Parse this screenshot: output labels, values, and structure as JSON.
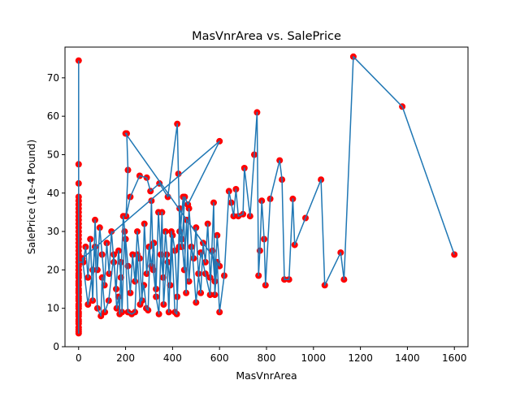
{
  "chart_data": {
    "type": "scatter",
    "title": "MasVnrArea vs. SalePrice",
    "xlabel": "MasVnrArea",
    "ylabel": "SalePrice (1e-4 Pound)",
    "xlim": [
      -58,
      1658
    ],
    "ylim": [
      0,
      78
    ],
    "xticks": [
      0,
      200,
      400,
      600,
      800,
      1000,
      1200,
      1400,
      1600
    ],
    "yticks": [
      0,
      10,
      20,
      30,
      40,
      50,
      60,
      70
    ],
    "xtick_labels": [
      "0",
      "200",
      "400",
      "600",
      "800",
      "1000",
      "1200",
      "1400",
      "1600"
    ],
    "ytick_labels": [
      "0",
      "10",
      "20",
      "30",
      "40",
      "50",
      "60",
      "70"
    ],
    "grid": false,
    "marker_color": "#ff0000",
    "line_color": "#1f77b4",
    "series": [
      {
        "x": [
          0,
          0,
          0,
          0,
          0,
          0,
          0,
          0,
          0,
          0,
          0,
          0,
          0,
          0,
          0,
          0,
          0,
          0,
          0,
          0,
          0,
          0,
          0,
          0,
          0,
          0,
          0,
          0,
          0,
          0,
          0,
          0,
          0,
          0,
          0,
          0,
          0,
          0,
          0,
          0,
          0,
          0,
          0,
          0,
          0,
          0,
          0,
          0,
          0,
          0,
          20,
          30,
          40,
          50,
          60,
          70,
          80,
          90,
          100,
          110,
          120,
          130,
          140,
          150,
          160,
          170,
          180,
          190,
          200,
          210,
          220,
          230,
          240,
          250,
          260,
          270,
          280,
          290,
          300,
          310,
          320,
          330,
          340,
          350,
          360,
          370,
          380,
          390,
          400,
          410,
          420,
          430,
          440,
          450,
          460,
          470,
          480,
          490,
          500,
          510,
          520,
          530,
          540,
          550,
          560,
          570,
          580,
          590,
          600,
          200,
          205,
          210,
          202,
          220,
          260,
          290,
          306,
          344,
          380,
          420,
          425,
          430,
          440,
          452,
          465,
          600,
          16,
          40,
          60,
          70,
          80,
          95,
          100,
          112,
          128,
          150,
          162,
          170,
          175,
          180,
          185,
          196,
          210,
          226,
          240,
          250,
          262,
          278,
          288,
          296,
          310,
          318,
          330,
          342,
          355,
          362,
          375,
          384,
          395,
          410,
          418,
          428,
          445,
          458,
          470,
          500,
          520,
          540,
          560,
          575,
          580,
          590,
          600,
          620,
          640,
          650,
          660,
          670,
          680,
          700,
          706,
          730,
          748,
          760,
          766,
          772,
          780,
          790,
          796,
          816,
          856,
          866,
          876,
          896,
          912,
          920,
          966,
          1032,
          1048,
          1116,
          1130,
          1170,
          1378,
          1600
        ],
        "y": [
          74.5,
          47.5,
          42.5,
          39,
          38,
          37,
          36,
          35,
          34,
          33,
          32,
          31,
          30,
          29,
          28,
          27,
          26,
          25,
          24,
          23,
          22,
          21,
          20,
          19,
          18,
          17,
          16,
          15,
          14,
          13,
          12,
          11,
          10,
          9,
          8,
          7,
          6,
          5,
          4,
          3.5,
          4.5,
          6.5,
          8.5,
          10.5,
          12.5,
          14.5,
          16.5,
          18.5,
          20,
          22,
          22,
          26,
          18,
          28,
          12,
          33,
          20,
          31,
          24,
          16,
          27,
          19,
          30,
          22,
          15,
          25,
          18,
          34,
          28,
          21,
          14,
          24,
          17,
          30,
          23,
          12,
          32,
          19,
          26,
          21,
          27,
          15,
          35,
          24,
          18,
          30,
          22,
          16,
          29,
          25,
          13,
          36,
          28,
          20,
          33,
          17,
          26,
          23,
          31,
          19,
          14,
          27,
          22,
          32,
          18,
          25,
          17,
          29,
          21,
          55.5,
          55.5,
          46,
          34,
          39,
          44.5,
          44,
          40.5,
          42.5,
          39,
          58,
          45,
          30,
          26,
          39,
          37,
          53.5,
          23,
          11,
          20,
          26,
          10,
          8,
          18,
          9,
          12,
          24,
          10,
          13,
          8.5,
          22,
          9,
          30,
          9,
          8.5,
          9,
          24,
          11,
          16,
          10,
          9.5,
          38,
          20,
          13,
          8.5,
          35,
          11,
          24,
          9,
          30,
          9,
          8.5,
          26,
          39,
          14,
          36,
          11.5,
          24.5,
          19,
          13.5,
          37.5,
          13.5,
          22,
          9,
          18.5,
          40.5,
          37.5,
          34,
          41,
          34,
          34.5,
          46.5,
          34,
          50,
          61,
          18.5,
          25,
          38,
          28,
          16,
          38.5,
          48.5,
          43.5,
          17.5,
          17.5,
          38.5,
          26.5,
          33.5,
          43.5,
          16,
          24.5,
          17.5,
          75.5,
          62.5,
          24
        ]
      }
    ]
  }
}
